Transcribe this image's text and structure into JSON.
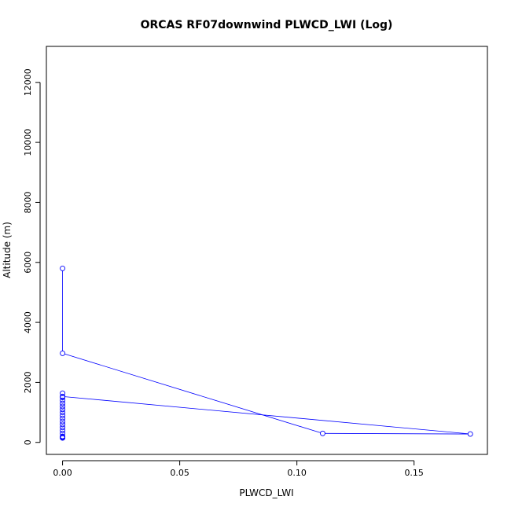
{
  "chart_data": {
    "type": "line",
    "title": "ORCAS RF07downwind PLWCD_LWI (Log)",
    "xlabel": "PLWCD_LWI",
    "ylabel": "Altitude (m)",
    "xlim": [
      -0.0069,
      0.1813
    ],
    "ylim": [
      -400,
      13200
    ],
    "x_ticks": [
      {
        "value": 0,
        "label": "0.00"
      },
      {
        "value": 0.05,
        "label": "0.05"
      },
      {
        "value": 0.1,
        "label": "0.10"
      },
      {
        "value": 0.15,
        "label": "0.15"
      }
    ],
    "y_ticks": [
      {
        "value": 0,
        "label": "0"
      },
      {
        "value": 2000,
        "label": "2000"
      },
      {
        "value": 4000,
        "label": "4000"
      },
      {
        "value": 6000,
        "label": "6000"
      },
      {
        "value": 8000,
        "label": "8000"
      },
      {
        "value": 10000,
        "label": "10000"
      },
      {
        "value": 12000,
        "label": "12000"
      }
    ],
    "grid": false,
    "legend": "none",
    "series": [
      {
        "color": "#0000ff",
        "points": [
          {
            "x": 0,
            "y": 5800
          },
          {
            "x": 0,
            "y": 2970
          },
          {
            "x": 0.111,
            "y": 300
          },
          {
            "x": 0.174,
            "y": 280
          },
          {
            "x": 0,
            "y": 1530
          },
          {
            "x": 0,
            "y": 1640
          },
          {
            "x": 0,
            "y": 1500
          },
          {
            "x": 0,
            "y": 1400
          },
          {
            "x": 0,
            "y": 1300
          },
          {
            "x": 0,
            "y": 1200
          },
          {
            "x": 0,
            "y": 1100
          },
          {
            "x": 0,
            "y": 1000
          },
          {
            "x": 0,
            "y": 900
          },
          {
            "x": 0,
            "y": 800
          },
          {
            "x": 0,
            "y": 700
          },
          {
            "x": 0,
            "y": 600
          },
          {
            "x": 0,
            "y": 500
          },
          {
            "x": 0,
            "y": 400
          },
          {
            "x": 0,
            "y": 300
          },
          {
            "x": 0,
            "y": 200
          },
          {
            "x": 0,
            "y": 180
          },
          {
            "x": 0,
            "y": 160
          },
          {
            "x": 0,
            "y": 150
          }
        ]
      }
    ]
  }
}
